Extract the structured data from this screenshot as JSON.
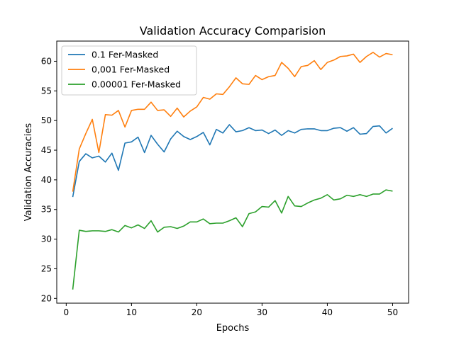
{
  "chart_data": {
    "type": "line",
    "title": "Validation Accuracy Comparision",
    "xlabel": "Epochs",
    "ylabel": "Validation Accuracies",
    "xlim": [
      -1.45,
      52.45
    ],
    "ylim": [
      19.2,
      63.4
    ],
    "xticks": [
      0,
      10,
      20,
      30,
      40,
      50
    ],
    "yticks": [
      20,
      25,
      30,
      35,
      40,
      45,
      50,
      55,
      60
    ],
    "grid": false,
    "legend_position": "top-left",
    "x": [
      1,
      2,
      3,
      4,
      5,
      6,
      7,
      8,
      9,
      10,
      11,
      12,
      13,
      14,
      15,
      16,
      17,
      18,
      19,
      20,
      21,
      22,
      23,
      24,
      25,
      26,
      27,
      28,
      29,
      30,
      31,
      32,
      33,
      34,
      35,
      36,
      37,
      38,
      39,
      40,
      41,
      42,
      43,
      44,
      45,
      46,
      47,
      48,
      49,
      50
    ],
    "series": [
      {
        "name": "0.1 Fer-Masked",
        "color": "#1f77b4",
        "values": [
          37.1,
          43.1,
          44.4,
          43.7,
          44.0,
          43.0,
          44.5,
          41.6,
          46.2,
          46.4,
          47.2,
          44.6,
          47.5,
          46.0,
          44.7,
          46.9,
          48.2,
          47.3,
          46.8,
          47.3,
          48.0,
          45.9,
          48.5,
          47.9,
          49.3,
          48.1,
          48.3,
          48.8,
          48.3,
          48.4,
          47.8,
          48.4,
          47.5,
          48.3,
          47.9,
          48.5,
          48.6,
          48.6,
          48.3,
          48.3,
          48.7,
          48.8,
          48.2,
          48.8,
          47.7,
          47.8,
          49.0,
          49.1,
          47.9,
          48.7
        ]
      },
      {
        "name": "0,001 Fer-Masked",
        "color": "#ff7f0e",
        "values": [
          38.0,
          45.2,
          47.8,
          50.2,
          44.6,
          51.0,
          50.9,
          51.7,
          48.9,
          51.7,
          51.9,
          51.9,
          53.1,
          51.7,
          51.8,
          50.7,
          52.1,
          50.6,
          51.6,
          52.3,
          53.9,
          53.6,
          54.5,
          54.4,
          55.7,
          57.2,
          56.2,
          56.1,
          57.6,
          56.9,
          57.4,
          57.6,
          59.8,
          58.8,
          57.4,
          59.1,
          59.3,
          60.1,
          58.6,
          59.8,
          60.2,
          60.8,
          60.9,
          61.2,
          59.8,
          60.8,
          61.5,
          60.7,
          61.3,
          61.1
        ]
      },
      {
        "name": "0.00001 Fer-Masked",
        "color": "#2ca02c",
        "values": [
          21.5,
          31.5,
          31.3,
          31.4,
          31.4,
          31.3,
          31.6,
          31.2,
          32.3,
          31.9,
          32.4,
          31.8,
          33.1,
          31.2,
          32.0,
          32.1,
          31.8,
          32.2,
          32.9,
          32.9,
          33.4,
          32.6,
          32.7,
          32.7,
          33.1,
          33.6,
          32.1,
          34.3,
          34.6,
          35.5,
          35.4,
          36.5,
          34.4,
          37.2,
          35.6,
          35.5,
          36.1,
          36.6,
          36.9,
          37.5,
          36.6,
          36.8,
          37.4,
          37.2,
          37.5,
          37.2,
          37.6,
          37.6,
          38.3,
          38.1
        ]
      }
    ]
  }
}
